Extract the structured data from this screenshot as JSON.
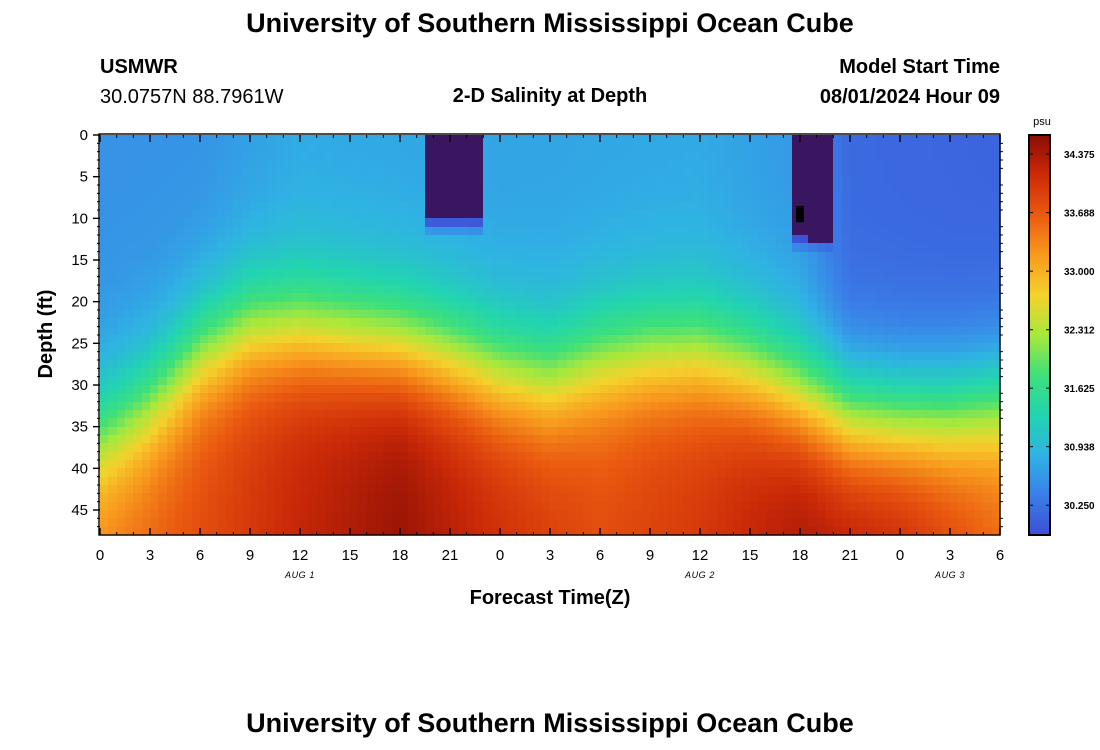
{
  "header": {
    "title": "University of Southern Mississippi Ocean Cube",
    "station_id": "USMWR",
    "coordinates": "30.0757N  88.7961W",
    "subtitle": "2-D Salinity at Depth",
    "model_start_label": "Model Start Time",
    "model_start_value": "08/01/2024 Hour 09"
  },
  "footer": {
    "title": "University of Southern Mississippi Ocean Cube"
  },
  "colors": {
    "scale": [
      "#3c50d6",
      "#3a7fe8",
      "#2fb3e3",
      "#22d4b0",
      "#3ee07a",
      "#a8e83c",
      "#f4d22c",
      "#f89a1e",
      "#ea5a10",
      "#cc2a08",
      "#8a0c04"
    ],
    "saturated_high": "#3a1660",
    "cell_marker": "#000000"
  },
  "chart_data": {
    "type": "heatmap",
    "title": "2-D Salinity at Depth",
    "xlabel": "Forecast Time(Z)",
    "ylabel": "Depth (ft)",
    "x_range_hours": [
      0,
      54
    ],
    "y_range_ft": [
      0,
      48
    ],
    "x_ticks": [
      {
        "hour": 0,
        "label": "0"
      },
      {
        "hour": 3,
        "label": "3"
      },
      {
        "hour": 6,
        "label": "6"
      },
      {
        "hour": 9,
        "label": "9"
      },
      {
        "hour": 12,
        "label": "12"
      },
      {
        "hour": 15,
        "label": "15"
      },
      {
        "hour": 18,
        "label": "18"
      },
      {
        "hour": 21,
        "label": "21"
      },
      {
        "hour": 24,
        "label": "0"
      },
      {
        "hour": 27,
        "label": "3"
      },
      {
        "hour": 30,
        "label": "6"
      },
      {
        "hour": 33,
        "label": "9"
      },
      {
        "hour": 36,
        "label": "12"
      },
      {
        "hour": 39,
        "label": "15"
      },
      {
        "hour": 42,
        "label": "18"
      },
      {
        "hour": 45,
        "label": "21"
      },
      {
        "hour": 48,
        "label": "0"
      },
      {
        "hour": 51,
        "label": "3"
      },
      {
        "hour": 54,
        "label": "6"
      }
    ],
    "y_ticks": [
      0,
      5,
      10,
      15,
      20,
      25,
      30,
      35,
      40,
      45
    ],
    "day_labels": [
      {
        "hour": 12,
        "label": "AUG 1"
      },
      {
        "hour": 36,
        "label": "AUG 2"
      },
      {
        "hour": 51,
        "label": "AUG 3"
      }
    ],
    "colorbar": {
      "unit": "psu",
      "min": 29.9,
      "max": 34.6,
      "tick_values": [
        34.375,
        33.688,
        33.0,
        32.312,
        31.625,
        30.938,
        30.25
      ],
      "tick_labels": [
        "34.375",
        "33.688",
        "33.000",
        "32.312",
        "31.625",
        "30.938",
        "30.250"
      ]
    },
    "grid": {
      "halocline_depth_ft": [
        {
          "hour": 0,
          "depth": 36
        },
        {
          "hour": 3,
          "depth": 32
        },
        {
          "hour": 6,
          "depth": 26
        },
        {
          "hour": 9,
          "depth": 23
        },
        {
          "hour": 12,
          "depth": 23
        },
        {
          "hour": 15,
          "depth": 24
        },
        {
          "hour": 18,
          "depth": 25
        },
        {
          "hour": 21,
          "depth": 26.5
        },
        {
          "hour": 24,
          "depth": 28.5
        },
        {
          "hour": 27,
          "depth": 29.5
        },
        {
          "hour": 30,
          "depth": 27
        },
        {
          "hour": 33,
          "depth": 26
        },
        {
          "hour": 36,
          "depth": 26
        },
        {
          "hour": 39,
          "depth": 28
        },
        {
          "hour": 42,
          "depth": 31
        },
        {
          "hour": 45,
          "depth": 33.5
        },
        {
          "hour": 48,
          "depth": 34
        },
        {
          "hour": 51,
          "depth": 33.5
        },
        {
          "hour": 54,
          "depth": 32
        }
      ],
      "transition_width_ft": 4.5,
      "surface_salinity": [
        {
          "hour": 0,
          "psu": 30.55
        },
        {
          "hour": 6,
          "psu": 30.55
        },
        {
          "hour": 12,
          "psu": 30.75
        },
        {
          "hour": 24,
          "psu": 30.7
        },
        {
          "hour": 36,
          "psu": 30.75
        },
        {
          "hour": 42,
          "psu": 30.6
        },
        {
          "hour": 45,
          "psu": 30.15
        },
        {
          "hour": 54,
          "psu": 30.1
        }
      ],
      "deep_salinity": [
        {
          "hour": 0,
          "psu": 33.4
        },
        {
          "hour": 6,
          "psu": 33.8
        },
        {
          "hour": 12,
          "psu": 34.2
        },
        {
          "hour": 18,
          "psu": 34.5
        },
        {
          "hour": 24,
          "psu": 34.1
        },
        {
          "hour": 30,
          "psu": 33.8
        },
        {
          "hour": 36,
          "psu": 34.0
        },
        {
          "hour": 42,
          "psu": 34.4
        },
        {
          "hour": 48,
          "psu": 34.2
        },
        {
          "hour": 54,
          "psu": 33.6
        }
      ],
      "low_plumes": [
        {
          "hour_start": 19.4,
          "hour_end": 22.8,
          "depth_max_ft": 12,
          "psu": 29.2
        },
        {
          "hour_start": 41.4,
          "hour_end": 43.8,
          "depth_max_ft": 14,
          "psu": 29.2
        }
      ],
      "marker_cell": {
        "hour": 42,
        "depth_ft": 9.5
      }
    }
  }
}
